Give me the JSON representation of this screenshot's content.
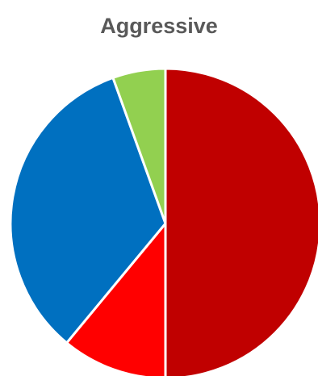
{
  "chart_data": {
    "type": "pie",
    "title": "Aggressive",
    "start_angle_deg": 0,
    "direction": "clockwise",
    "legend": "none",
    "slices": [
      {
        "value": 50,
        "color": "#C00000"
      },
      {
        "value": 11,
        "color": "#FF0000"
      },
      {
        "value": 33.5,
        "color": "#0070C0"
      },
      {
        "value": 5.5,
        "color": "#92D050"
      }
    ]
  }
}
